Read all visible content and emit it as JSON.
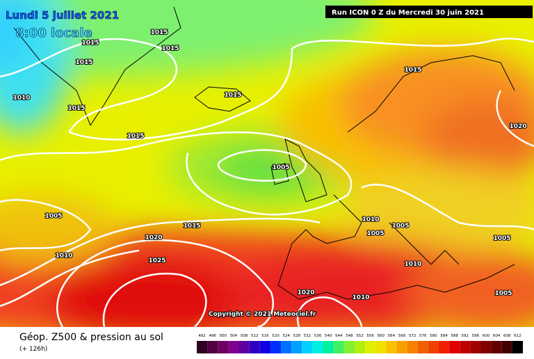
{
  "header": {
    "date": "Lundi 5 juillet 2021",
    "time": "8:00 locale",
    "run": "Run ICON 0 Z du Mercredi 30 juin 2021"
  },
  "isobar_labels": [
    1015,
    1015,
    1015,
    1015,
    1010,
    1015,
    1015,
    1015,
    1005,
    1015,
    1020,
    1005,
    1010,
    1015,
    1020,
    1025,
    1010,
    1005,
    1005,
    1005,
    1020,
    1010,
    1005,
    1010
  ],
  "copyright": "Copyright © 2021 Meteociel.fr",
  "footer": {
    "title": "Géop. Z500 & pression au sol",
    "lead": "(+ 126h)"
  },
  "scale": {
    "ticks": [
      492,
      496,
      500,
      504,
      508,
      512,
      516,
      520,
      524,
      528,
      532,
      536,
      540,
      544,
      548,
      552,
      556,
      560,
      564,
      568,
      572,
      576,
      580,
      584,
      588,
      592,
      596,
      600,
      604,
      608,
      612
    ]
  }
}
